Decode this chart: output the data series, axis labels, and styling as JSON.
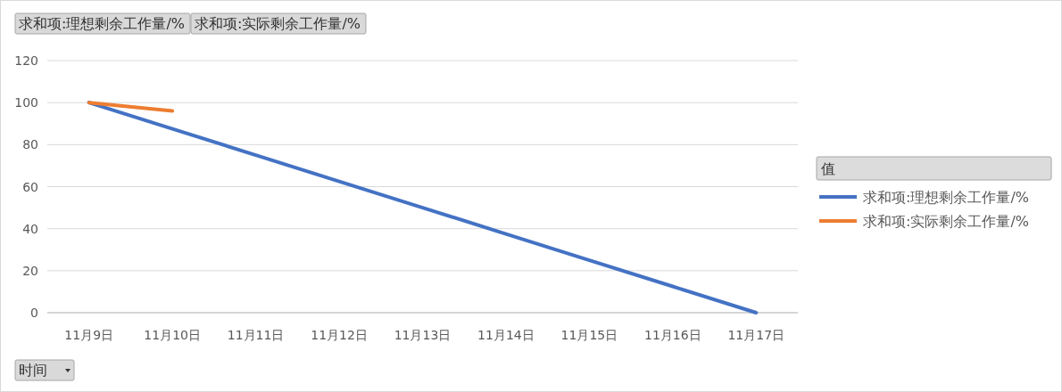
{
  "chart_data": {
    "type": "line",
    "categories": [
      "11月9日",
      "11月10日",
      "11月11日",
      "11月12日",
      "11月13日",
      "11月14日",
      "11月15日",
      "11月16日",
      "11月17日"
    ],
    "series": [
      {
        "name": "求和项:理想剩余工作量/%",
        "color": "#4472c4",
        "values": [
          100,
          87.5,
          75,
          62.5,
          50,
          37.5,
          25,
          12.5,
          0
        ]
      },
      {
        "name": "求和项:实际剩余工作量/%",
        "color": "#ed7d31",
        "values": [
          100,
          96,
          null,
          null,
          null,
          null,
          null,
          null,
          null
        ]
      }
    ],
    "ylim": [
      0,
      120
    ],
    "yticks": [
      0,
      20,
      40,
      60,
      80,
      100,
      120
    ],
    "grid": "y",
    "legend": "right",
    "legend_title": "值",
    "annotations": [
      "求和项:理想剩余工作量/%",
      "求和项:实际剩余工作量/%",
      "时间"
    ]
  }
}
